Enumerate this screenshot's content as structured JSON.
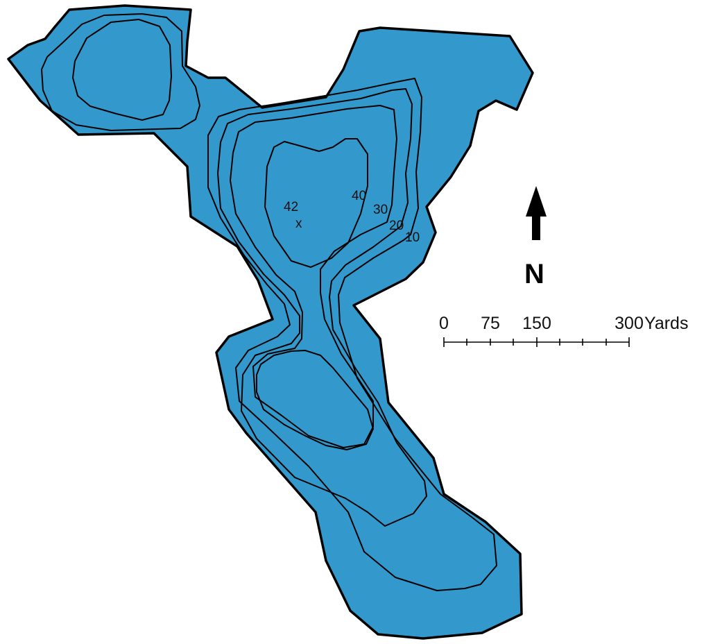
{
  "map": {
    "colors": {
      "water": "#3398cc",
      "outline": "#000000",
      "background": "#ffffff"
    },
    "depth_labels": [
      "10",
      "20",
      "30",
      "40"
    ],
    "deepest_point": {
      "label": "42",
      "marker": "x"
    },
    "north_arrow": {
      "letter": "N"
    },
    "scale_bar": {
      "labels": [
        "0",
        "75",
        "150",
        "300"
      ],
      "unit": "Yards",
      "divisions": 8
    }
  }
}
